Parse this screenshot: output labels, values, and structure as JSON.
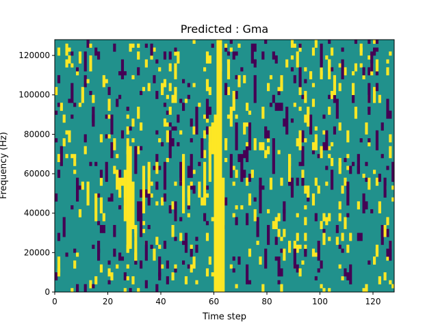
{
  "chart_data": {
    "type": "heatmap",
    "title": "Predicted : Gma",
    "xlabel": "Time step",
    "ylabel": "Frequency (Hz)",
    "xlim": [
      0,
      128
    ],
    "ylim": [
      0,
      128000
    ],
    "x_ticks": [
      "0",
      "20",
      "40",
      "60",
      "80",
      "100",
      "120"
    ],
    "y_ticks": [
      "0",
      "20000",
      "40000",
      "60000",
      "80000",
      "100000",
      "120000"
    ],
    "n_time_steps": 128,
    "n_freq_bins": 64,
    "freq_bin_hz": 2000,
    "colormap": {
      "low": "#440154",
      "mid": "#21918c",
      "high": "#fde725"
    },
    "background_value": 0,
    "cells_high": [
      [
        61,
        0,
        63
      ],
      [
        62,
        0,
        63
      ],
      [
        60,
        0,
        44
      ],
      [
        63,
        0,
        28
      ],
      [
        59,
        35,
        42
      ],
      [
        58,
        28,
        41
      ],
      [
        56,
        22,
        32
      ],
      [
        27,
        10,
        38
      ],
      [
        28,
        12,
        36
      ],
      [
        26,
        18,
        30
      ],
      [
        29,
        18,
        27
      ],
      [
        30,
        8,
        16
      ],
      [
        33,
        20,
        31
      ],
      [
        35,
        25,
        32
      ],
      [
        24,
        24,
        28
      ],
      [
        23,
        26,
        30
      ],
      [
        12,
        22,
        27
      ],
      [
        15,
        18,
        24
      ],
      [
        17,
        20,
        23
      ],
      [
        48,
        20,
        34
      ],
      [
        50,
        22,
        26
      ],
      [
        54,
        24,
        27
      ],
      [
        65,
        54,
        58
      ],
      [
        66,
        42,
        46
      ],
      [
        88,
        28,
        34
      ],
      [
        92,
        36,
        40
      ],
      [
        95,
        42,
        46
      ],
      [
        105,
        50,
        54
      ],
      [
        1,
        5,
        8
      ],
      [
        4,
        60,
        62
      ],
      [
        9,
        58,
        60
      ],
      [
        13,
        56,
        59
      ],
      [
        18,
        52,
        54
      ],
      [
        20,
        46,
        48
      ],
      [
        40,
        50,
        52
      ],
      [
        42,
        38,
        40
      ],
      [
        45,
        54,
        57
      ],
      [
        52,
        6,
        8
      ],
      [
        37,
        8,
        10
      ],
      [
        71,
        40,
        42
      ],
      [
        73,
        22,
        24
      ],
      [
        83,
        16,
        18
      ],
      [
        86,
        8,
        10
      ],
      [
        101,
        12,
        14
      ],
      [
        110,
        38,
        40
      ],
      [
        112,
        50,
        52
      ],
      [
        115,
        60,
        62
      ],
      [
        118,
        26,
        28
      ],
      [
        124,
        14,
        16
      ],
      [
        67,
        47,
        50
      ],
      [
        69,
        52,
        53
      ],
      [
        91,
        57,
        60
      ],
      [
        98,
        62,
        63
      ],
      [
        103,
        56,
        58
      ],
      [
        107,
        30,
        33
      ],
      [
        113,
        44,
        46
      ],
      [
        120,
        48,
        50
      ],
      [
        126,
        34,
        36
      ],
      [
        10,
        48,
        50
      ],
      [
        22,
        36,
        38
      ],
      [
        31,
        44,
        46
      ],
      [
        38,
        30,
        32
      ],
      [
        44,
        14,
        16
      ],
      [
        46,
        58,
        60
      ],
      [
        64,
        36,
        38
      ],
      [
        75,
        18,
        20
      ],
      [
        78,
        44,
        46
      ],
      [
        81,
        26,
        28
      ],
      [
        85,
        52,
        54
      ],
      [
        94,
        48,
        50
      ],
      [
        97,
        22,
        24
      ],
      [
        100,
        34,
        36
      ],
      [
        109,
        16,
        18
      ],
      [
        117,
        40,
        42
      ],
      [
        122,
        20,
        22
      ],
      [
        5,
        38,
        40
      ],
      [
        7,
        32,
        34
      ]
    ],
    "cells_low": [
      [
        35,
        22,
        28
      ],
      [
        34,
        8,
        12
      ],
      [
        32,
        14,
        22
      ],
      [
        30,
        30,
        36
      ],
      [
        31,
        18,
        22
      ],
      [
        41,
        26,
        32
      ],
      [
        43,
        34,
        40
      ],
      [
        45,
        18,
        22
      ],
      [
        47,
        28,
        32
      ],
      [
        51,
        30,
        34
      ],
      [
        53,
        40,
        46
      ],
      [
        55,
        34,
        38
      ],
      [
        57,
        44,
        48
      ],
      [
        66,
        30,
        34
      ],
      [
        68,
        36,
        42
      ],
      [
        70,
        28,
        34
      ],
      [
        72,
        2,
        6
      ],
      [
        73,
        36,
        42
      ],
      [
        75,
        48,
        54
      ],
      [
        77,
        22,
        28
      ],
      [
        79,
        6,
        10
      ],
      [
        80,
        12,
        16
      ],
      [
        82,
        30,
        36
      ],
      [
        84,
        4,
        8
      ],
      [
        87,
        40,
        46
      ],
      [
        89,
        24,
        28
      ],
      [
        90,
        6,
        10
      ],
      [
        93,
        32,
        36
      ],
      [
        96,
        40,
        44
      ],
      [
        99,
        8,
        12
      ],
      [
        102,
        36,
        40
      ],
      [
        104,
        26,
        30
      ],
      [
        106,
        44,
        48
      ],
      [
        108,
        54,
        58
      ],
      [
        111,
        2,
        6
      ],
      [
        114,
        30,
        34
      ],
      [
        116,
        20,
        24
      ],
      [
        119,
        56,
        60
      ],
      [
        121,
        36,
        40
      ],
      [
        123,
        12,
        16
      ],
      [
        125,
        44,
        48
      ],
      [
        127,
        28,
        32
      ],
      [
        2,
        32,
        36
      ],
      [
        3,
        14,
        18
      ],
      [
        6,
        48,
        52
      ],
      [
        8,
        24,
        28
      ],
      [
        11,
        56,
        60
      ],
      [
        14,
        42,
        46
      ],
      [
        16,
        8,
        12
      ],
      [
        19,
        28,
        32
      ],
      [
        21,
        40,
        44
      ],
      [
        25,
        54,
        58
      ],
      [
        36,
        60,
        62
      ],
      [
        39,
        4,
        8
      ],
      [
        49,
        10,
        14
      ],
      [
        64,
        50,
        52
      ],
      [
        74,
        58,
        62
      ],
      [
        76,
        14,
        18
      ],
      [
        86,
        18,
        22
      ],
      [
        92,
        52,
        56
      ],
      [
        100,
        58,
        62
      ],
      [
        110,
        22,
        26
      ],
      [
        118,
        48,
        52
      ],
      [
        124,
        24,
        28
      ],
      [
        126,
        8,
        12
      ]
    ],
    "cells_sparse_seed": 17
  }
}
